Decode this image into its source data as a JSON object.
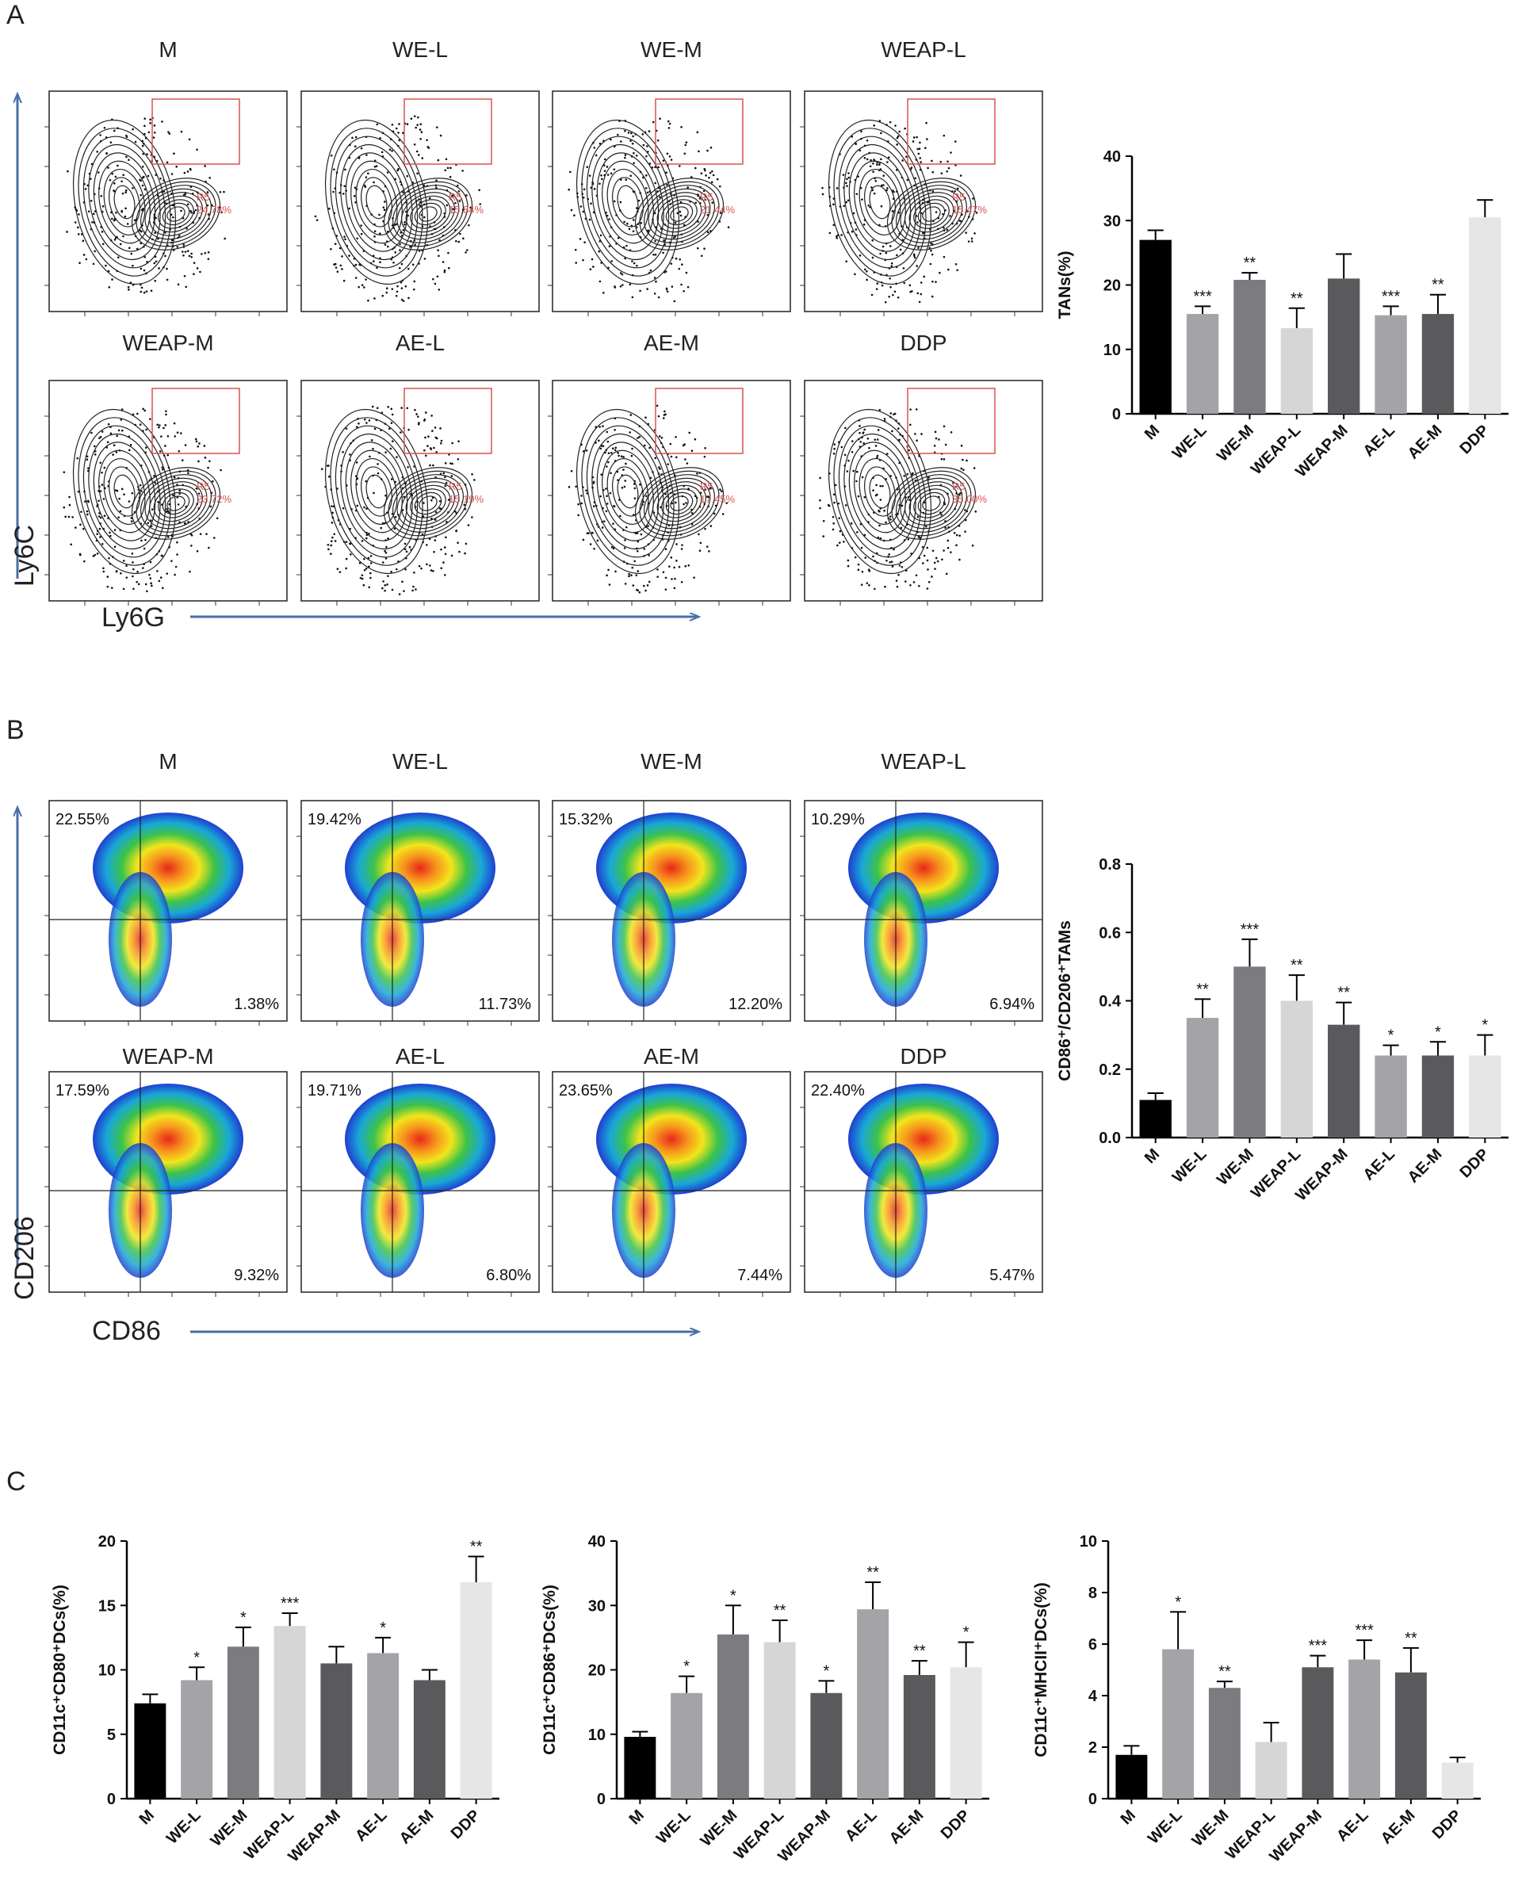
{
  "panel_labels": [
    "A",
    "B",
    "C"
  ],
  "axis_titles": {
    "a_y": "Ly6C",
    "a_x": "Ly6G",
    "b_y": "CD206",
    "b_x": "CD86"
  },
  "groups": [
    "M",
    "WE-L",
    "WE-M",
    "WEAP-L",
    "WEAP-M",
    "AE-L",
    "AE-M",
    "DDP"
  ],
  "flow_a": {
    "gate_name": "R5",
    "percents": [
      "24.78%",
      "15.84%",
      "21.44%",
      "15.47%",
      "23.72%",
      "15.19%",
      "17.45%",
      "35.00%"
    ]
  },
  "flow_b": {
    "upper_left": [
      "22.55%",
      "19.42%",
      "15.32%",
      "10.29%",
      "17.59%",
      "19.71%",
      "23.65%",
      "22.40%"
    ],
    "lower_right": [
      "1.38%",
      "11.73%",
      "12.20%",
      "6.94%",
      "9.32%",
      "6.80%",
      "7.44%",
      "5.47%"
    ]
  },
  "colors": {
    "bars": [
      "#000000",
      "#a4a4a8",
      "#7c7c80",
      "#d6d6d6",
      "#5a5a5c",
      "#a4a4a8",
      "#5a5a5c",
      "#e6e6e6"
    ],
    "arrow": "#4a6fa5",
    "gate": "#d9534f"
  },
  "chart_data": [
    {
      "type": "bar",
      "id": "tans",
      "ylabel": "TANs(%)",
      "categories": [
        "M",
        "WE-L",
        "WE-M",
        "WEAP-L",
        "WEAP-M",
        "AE-L",
        "AE-M",
        "DDP"
      ],
      "values": [
        27.0,
        15.5,
        20.8,
        13.3,
        21.0,
        15.3,
        15.5,
        30.5
      ],
      "errors": [
        1.5,
        1.2,
        1.1,
        3.1,
        3.8,
        1.4,
        3.0,
        2.7
      ],
      "significance": [
        "",
        "***",
        "**",
        "**",
        "",
        "***",
        "**",
        ""
      ],
      "ylim": [
        0,
        40
      ],
      "yticks": [
        0,
        10,
        20,
        30,
        40
      ],
      "ytick_labels": [
        "0",
        "10",
        "20",
        "30",
        "40"
      ]
    },
    {
      "type": "bar",
      "id": "ratio",
      "ylabel": "CD86⁺/CD206⁺TAMs",
      "categories": [
        "M",
        "WE-L",
        "WE-M",
        "WEAP-L",
        "WEAP-M",
        "AE-L",
        "AE-M",
        "DDP"
      ],
      "values": [
        0.11,
        0.35,
        0.5,
        0.4,
        0.33,
        0.24,
        0.24,
        0.24
      ],
      "errors": [
        0.02,
        0.055,
        0.08,
        0.075,
        0.065,
        0.03,
        0.04,
        0.06
      ],
      "significance": [
        "",
        "**",
        "***",
        "**",
        "**",
        "*",
        "*",
        "*"
      ],
      "ylim": [
        0,
        0.8
      ],
      "yticks": [
        0,
        0.2,
        0.4,
        0.6,
        0.8
      ],
      "ytick_labels": [
        "0.0",
        "0.2",
        "0.4",
        "0.6",
        "0.8"
      ]
    },
    {
      "type": "bar",
      "id": "cd80",
      "ylabel": "CD11c⁺CD80⁺DCs(%)",
      "categories": [
        "M",
        "WE-L",
        "WE-M",
        "WEAP-L",
        "WEAP-M",
        "AE-L",
        "AE-M",
        "DDP"
      ],
      "values": [
        7.4,
        9.2,
        11.8,
        13.4,
        10.5,
        11.3,
        9.2,
        16.8
      ],
      "errors": [
        0.7,
        1.0,
        1.5,
        1.0,
        1.3,
        1.2,
        0.8,
        2.0
      ],
      "significance": [
        "",
        "*",
        "*",
        "***",
        "",
        "*",
        "",
        "**"
      ],
      "ylim": [
        0,
        20
      ],
      "yticks": [
        0,
        5,
        10,
        15,
        20
      ],
      "ytick_labels": [
        "0",
        "5",
        "10",
        "15",
        "20"
      ]
    },
    {
      "type": "bar",
      "id": "cd86",
      "ylabel": "CD11c⁺CD86⁺DCs(%)",
      "categories": [
        "M",
        "WE-L",
        "WE-M",
        "WEAP-L",
        "WEAP-M",
        "AE-L",
        "AE-M",
        "DDP"
      ],
      "values": [
        9.6,
        16.4,
        25.5,
        24.3,
        16.4,
        29.4,
        19.2,
        20.4
      ],
      "errors": [
        0.8,
        2.6,
        4.5,
        3.4,
        1.9,
        4.2,
        2.2,
        3.9
      ],
      "significance": [
        "",
        "*",
        "*",
        "**",
        "*",
        "**",
        "**",
        "*"
      ],
      "ylim": [
        0,
        40
      ],
      "yticks": [
        0,
        10,
        20,
        30,
        40
      ],
      "ytick_labels": [
        "0",
        "10",
        "20",
        "30",
        "40"
      ]
    },
    {
      "type": "bar",
      "id": "mhc",
      "ylabel": "CD11c⁺MHCII⁺DCs(%)",
      "categories": [
        "M",
        "WE-L",
        "WE-M",
        "WEAP-L",
        "WEAP-M",
        "AE-L",
        "AE-M",
        "DDP"
      ],
      "values": [
        1.7,
        5.8,
        4.3,
        2.2,
        5.1,
        5.4,
        4.9,
        1.4
      ],
      "errors": [
        0.35,
        1.45,
        0.25,
        0.75,
        0.45,
        0.75,
        0.95,
        0.2
      ],
      "significance": [
        "",
        "*",
        "**",
        "",
        "***",
        "***",
        "**",
        ""
      ],
      "ylim": [
        0,
        10
      ],
      "yticks": [
        0,
        2,
        4,
        6,
        8,
        10
      ],
      "ytick_labels": [
        "0",
        "2",
        "4",
        "6",
        "8",
        "10"
      ]
    }
  ]
}
